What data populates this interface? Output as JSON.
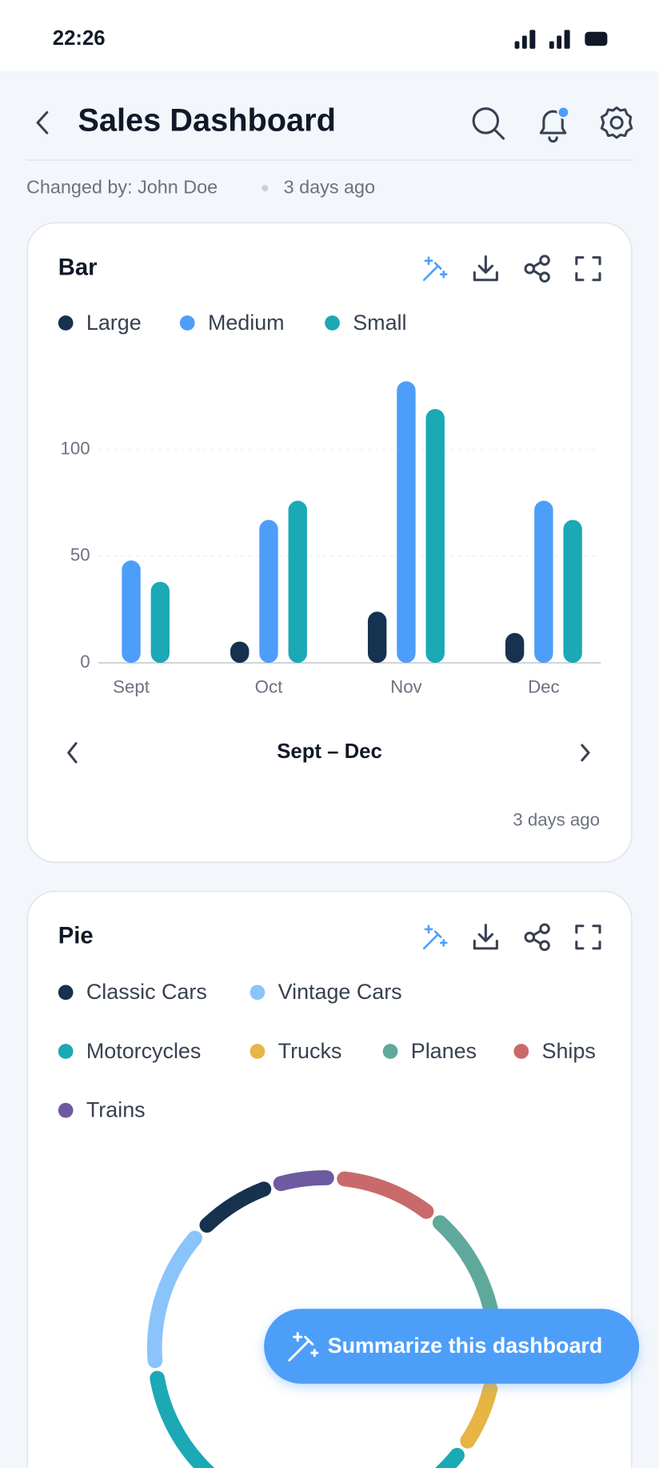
{
  "status_bar": {
    "time": "22:26"
  },
  "header": {
    "title": "Sales Dashboard",
    "changed_by": "Changed by: John Doe",
    "changed_when": "3 days ago"
  },
  "chart_data": [
    {
      "type": "bar",
      "title": "Bar",
      "categories": [
        "Sept",
        "Oct",
        "Nov",
        "Dec"
      ],
      "series": [
        {
          "name": "Large",
          "color": "#16324f",
          "values": [
            null,
            10,
            24,
            14
          ]
        },
        {
          "name": "Medium",
          "color": "#4d9ef9",
          "values": [
            48,
            67,
            132,
            76
          ]
        },
        {
          "name": "Small",
          "color": "#1aa9b5",
          "values": [
            38,
            76,
            119,
            67
          ]
        }
      ],
      "ylim": [
        0,
        140
      ],
      "yticks": [
        0,
        50,
        100
      ],
      "grid": true,
      "range_label": "Sept – Dec",
      "updated": "3 days ago"
    },
    {
      "type": "pie",
      "title": "Pie",
      "categories": [
        "Classic Cars",
        "Vintage Cars",
        "Motorcycles",
        "Trucks",
        "Planes",
        "Ships",
        "Trains"
      ],
      "values": [
        8,
        14,
        38,
        7,
        17,
        10,
        6
      ],
      "colors": [
        "#16324f",
        "#8ac4fb",
        "#1aa9b5",
        "#e7b544",
        "#5ea99b",
        "#c96a6a",
        "#6d5aa0"
      ]
    }
  ],
  "summarize_button": "Summarize this dashboard"
}
